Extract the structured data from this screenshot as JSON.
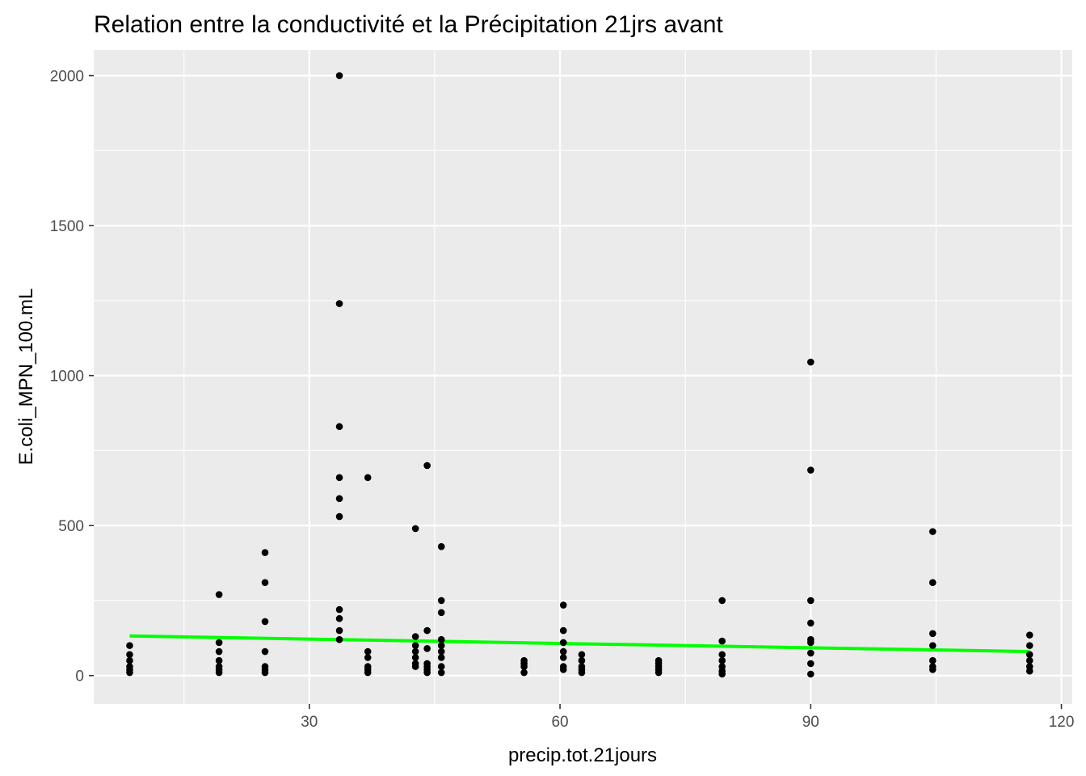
{
  "chart_data": {
    "type": "scatter",
    "title": "Relation entre la conductivité et la Précipitation 21jrs avant",
    "xlabel": "precip.tot.21jours",
    "ylabel": "E.coli_MPN_100.mL",
    "xlim": [
      4.2,
      121.3
    ],
    "ylim": [
      -95,
      2085
    ],
    "xticks": [
      30,
      60,
      90,
      120
    ],
    "yticks": [
      0,
      500,
      1000,
      1500,
      2000
    ],
    "x_tick_labels": [
      "30",
      "60",
      "90",
      "120"
    ],
    "y_tick_labels": [
      "0",
      "500",
      "1000",
      "1500",
      "2000"
    ],
    "grid": true,
    "colors": {
      "panel": "#ebebeb",
      "grid": "#ffffff",
      "points": "#000000",
      "trend": "#00ff00"
    },
    "points": [
      {
        "x": 8.5,
        "y": 100
      },
      {
        "x": 8.5,
        "y": 70
      },
      {
        "x": 8.5,
        "y": 50
      },
      {
        "x": 8.5,
        "y": 30
      },
      {
        "x": 8.5,
        "y": 20
      },
      {
        "x": 8.5,
        "y": 10
      },
      {
        "x": 19.2,
        "y": 270
      },
      {
        "x": 19.2,
        "y": 110
      },
      {
        "x": 19.2,
        "y": 80
      },
      {
        "x": 19.2,
        "y": 50
      },
      {
        "x": 19.2,
        "y": 30
      },
      {
        "x": 19.2,
        "y": 20
      },
      {
        "x": 19.2,
        "y": 10
      },
      {
        "x": 24.7,
        "y": 410
      },
      {
        "x": 24.7,
        "y": 310
      },
      {
        "x": 24.7,
        "y": 180
      },
      {
        "x": 24.7,
        "y": 80
      },
      {
        "x": 24.7,
        "y": 30
      },
      {
        "x": 24.7,
        "y": 20
      },
      {
        "x": 24.7,
        "y": 10
      },
      {
        "x": 33.6,
        "y": 2000
      },
      {
        "x": 33.6,
        "y": 1240
      },
      {
        "x": 33.6,
        "y": 830
      },
      {
        "x": 33.6,
        "y": 660
      },
      {
        "x": 33.6,
        "y": 590
      },
      {
        "x": 33.6,
        "y": 530
      },
      {
        "x": 33.6,
        "y": 220
      },
      {
        "x": 33.6,
        "y": 190
      },
      {
        "x": 33.6,
        "y": 150
      },
      {
        "x": 33.6,
        "y": 120
      },
      {
        "x": 37.0,
        "y": 660
      },
      {
        "x": 37.0,
        "y": 80
      },
      {
        "x": 37.0,
        "y": 60
      },
      {
        "x": 37.0,
        "y": 30
      },
      {
        "x": 37.0,
        "y": 20
      },
      {
        "x": 37.0,
        "y": 10
      },
      {
        "x": 42.7,
        "y": 490
      },
      {
        "x": 42.7,
        "y": 130
      },
      {
        "x": 42.7,
        "y": 100
      },
      {
        "x": 42.7,
        "y": 80
      },
      {
        "x": 42.7,
        "y": 60
      },
      {
        "x": 42.7,
        "y": 40
      },
      {
        "x": 42.7,
        "y": 30
      },
      {
        "x": 44.1,
        "y": 700
      },
      {
        "x": 44.1,
        "y": 150
      },
      {
        "x": 44.1,
        "y": 90
      },
      {
        "x": 44.1,
        "y": 40
      },
      {
        "x": 44.1,
        "y": 30
      },
      {
        "x": 44.1,
        "y": 20
      },
      {
        "x": 44.1,
        "y": 10
      },
      {
        "x": 45.8,
        "y": 430
      },
      {
        "x": 45.8,
        "y": 250
      },
      {
        "x": 45.8,
        "y": 210
      },
      {
        "x": 45.8,
        "y": 120
      },
      {
        "x": 45.8,
        "y": 100
      },
      {
        "x": 45.8,
        "y": 80
      },
      {
        "x": 45.8,
        "y": 60
      },
      {
        "x": 45.8,
        "y": 30
      },
      {
        "x": 45.8,
        "y": 10
      },
      {
        "x": 55.7,
        "y": 50
      },
      {
        "x": 55.7,
        "y": 40
      },
      {
        "x": 55.7,
        "y": 30
      },
      {
        "x": 55.7,
        "y": 10
      },
      {
        "x": 60.4,
        "y": 235
      },
      {
        "x": 60.4,
        "y": 150
      },
      {
        "x": 60.4,
        "y": 110
      },
      {
        "x": 60.4,
        "y": 80
      },
      {
        "x": 60.4,
        "y": 60
      },
      {
        "x": 60.4,
        "y": 30
      },
      {
        "x": 60.4,
        "y": 20
      },
      {
        "x": 62.6,
        "y": 70
      },
      {
        "x": 62.6,
        "y": 50
      },
      {
        "x": 62.6,
        "y": 30
      },
      {
        "x": 62.6,
        "y": 20
      },
      {
        "x": 62.6,
        "y": 10
      },
      {
        "x": 71.8,
        "y": 50
      },
      {
        "x": 71.8,
        "y": 40
      },
      {
        "x": 71.8,
        "y": 30
      },
      {
        "x": 71.8,
        "y": 20
      },
      {
        "x": 71.8,
        "y": 10
      },
      {
        "x": 79.4,
        "y": 250
      },
      {
        "x": 79.4,
        "y": 115
      },
      {
        "x": 79.4,
        "y": 70
      },
      {
        "x": 79.4,
        "y": 50
      },
      {
        "x": 79.4,
        "y": 30
      },
      {
        "x": 79.4,
        "y": 15
      },
      {
        "x": 79.4,
        "y": 5
      },
      {
        "x": 90.0,
        "y": 1045
      },
      {
        "x": 90.0,
        "y": 685
      },
      {
        "x": 90.0,
        "y": 250
      },
      {
        "x": 90.0,
        "y": 175
      },
      {
        "x": 90.0,
        "y": 120
      },
      {
        "x": 90.0,
        "y": 110
      },
      {
        "x": 90.0,
        "y": 75
      },
      {
        "x": 90.0,
        "y": 40
      },
      {
        "x": 90.0,
        "y": 5
      },
      {
        "x": 104.6,
        "y": 480
      },
      {
        "x": 104.6,
        "y": 310
      },
      {
        "x": 104.6,
        "y": 140
      },
      {
        "x": 104.6,
        "y": 100
      },
      {
        "x": 104.6,
        "y": 50
      },
      {
        "x": 104.6,
        "y": 30
      },
      {
        "x": 104.6,
        "y": 20
      },
      {
        "x": 116.2,
        "y": 135
      },
      {
        "x": 116.2,
        "y": 100
      },
      {
        "x": 116.2,
        "y": 70
      },
      {
        "x": 116.2,
        "y": 50
      },
      {
        "x": 116.2,
        "y": 30
      },
      {
        "x": 116.2,
        "y": 15
      }
    ],
    "trend_line": {
      "x": [
        8.5,
        116.2
      ],
      "y": [
        132,
        80
      ]
    }
  }
}
